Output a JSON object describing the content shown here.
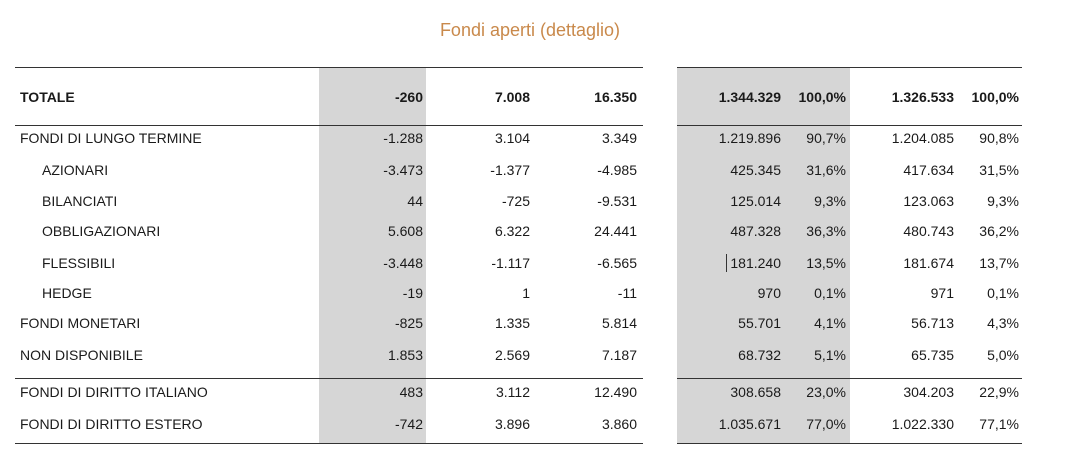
{
  "title": "Fondi aperti (dettaglio)",
  "rows": [
    {
      "label": "TOTALE",
      "v1": "-260",
      "v2": "7.008",
      "v3": "16.350",
      "v4": "1.344.329",
      "v5": "100,0%",
      "v6": "1.326.533",
      "v7": "100,0%"
    },
    {
      "label": "FONDI DI LUNGO TERMINE",
      "v1": "-1.288",
      "v2": "3.104",
      "v3": "3.349",
      "v4": "1.219.896",
      "v5": "90,7%",
      "v6": "1.204.085",
      "v7": "90,8%"
    },
    {
      "label": "AZIONARI",
      "v1": "-3.473",
      "v2": "-1.377",
      "v3": "-4.985",
      "v4": "425.345",
      "v5": "31,6%",
      "v6": "417.634",
      "v7": "31,5%"
    },
    {
      "label": "BILANCIATI",
      "v1": "44",
      "v2": "-725",
      "v3": "-9.531",
      "v4": "125.014",
      "v5": "9,3%",
      "v6": "123.063",
      "v7": "9,3%"
    },
    {
      "label": "OBBLIGAZIONARI",
      "v1": "5.608",
      "v2": "6.322",
      "v3": "24.441",
      "v4": "487.328",
      "v5": "36,3%",
      "v6": "480.743",
      "v7": "36,2%"
    },
    {
      "label": "FLESSIBILI",
      "v1": "-3.448",
      "v2": "-1.117",
      "v3": "-6.565",
      "v4": "181.240",
      "v5": "13,5%",
      "v6": "181.674",
      "v7": "13,7%"
    },
    {
      "label": "HEDGE",
      "v1": "-19",
      "v2": "1",
      "v3": "-11",
      "v4": "970",
      "v5": "0,1%",
      "v6": "971",
      "v7": "0,1%"
    },
    {
      "label": "FONDI MONETARI",
      "v1": "-825",
      "v2": "1.335",
      "v3": "5.814",
      "v4": "55.701",
      "v5": "4,1%",
      "v6": "56.713",
      "v7": "4,3%"
    },
    {
      "label": "NON DISPONIBILE",
      "v1": "1.853",
      "v2": "2.569",
      "v3": "7.187",
      "v4": "68.732",
      "v5": "5,1%",
      "v6": "65.735",
      "v7": "5,0%"
    },
    {
      "label": "FONDI DI DIRITTO ITALIANO",
      "v1": "483",
      "v2": "3.112",
      "v3": "12.490",
      "v4": "308.658",
      "v5": "23,0%",
      "v6": "304.203",
      "v7": "22,9%"
    },
    {
      "label": "FONDI DI DIRITTO ESTERO",
      "v1": "-742",
      "v2": "3.896",
      "v3": "3.860",
      "v4": "1.035.671",
      "v5": "77,0%",
      "v6": "1.022.330",
      "v7": "77,1%"
    }
  ]
}
